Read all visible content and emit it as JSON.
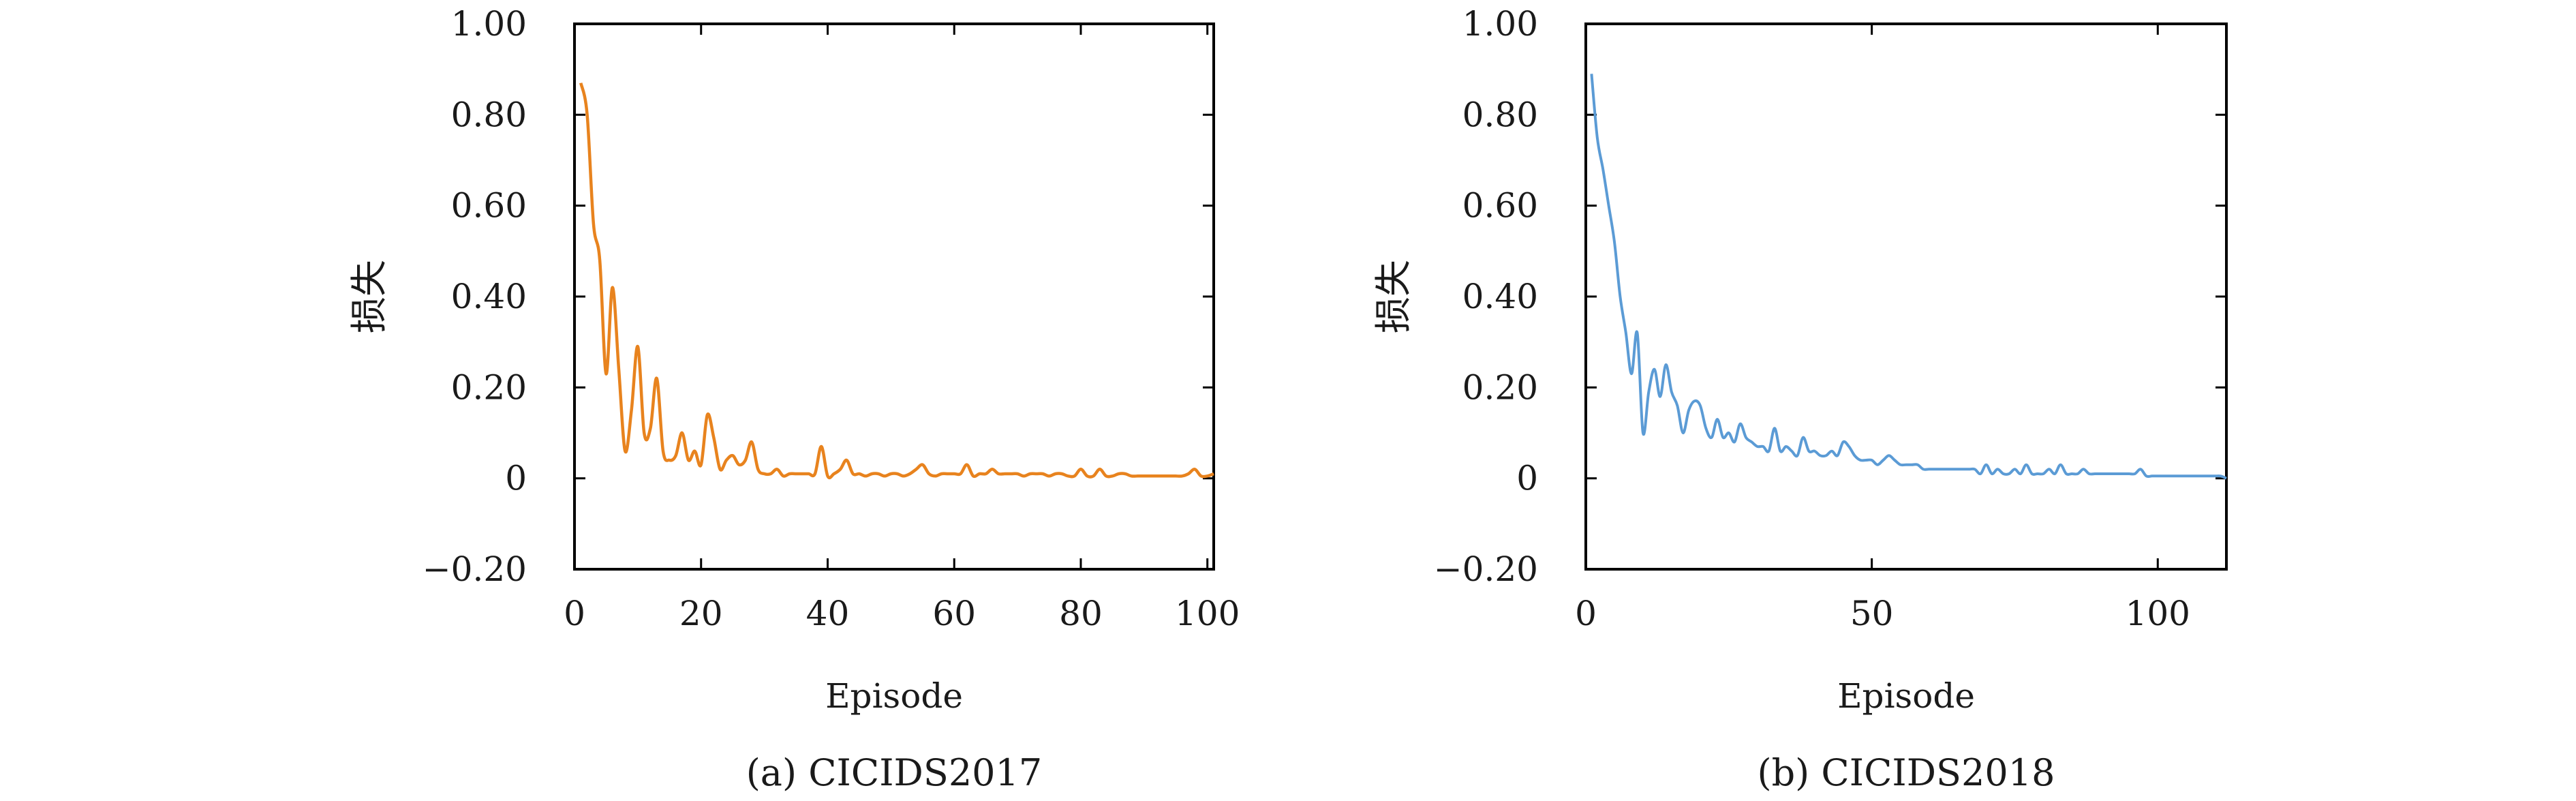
{
  "chart_data": [
    {
      "type": "line",
      "caption": "(a) CICIDS2017",
      "xlabel": "Episode",
      "ylabel": "损失",
      "xlim": [
        0,
        101
      ],
      "ylim": [
        -0.2,
        1.0
      ],
      "xticks": [
        0,
        20,
        40,
        60,
        80,
        100
      ],
      "xtick_labels": [
        "0",
        "20",
        "40",
        "60",
        "80",
        "100"
      ],
      "yticks": [
        -0.2,
        0,
        0.2,
        0.4,
        0.6,
        0.8,
        1.0
      ],
      "ytick_labels": [
        "−0.20",
        "0",
        "0.20",
        "0.40",
        "0.60",
        "0.80",
        "1.00"
      ],
      "grid": false,
      "color": "#E8831E",
      "series": [
        {
          "x": [
            1,
            2,
            3,
            4,
            5,
            6,
            7,
            8,
            9,
            10,
            11,
            12,
            13,
            14,
            15,
            16,
            17,
            18,
            19,
            20,
            21,
            22,
            23,
            24,
            25,
            26,
            27,
            28,
            29,
            30,
            31,
            32,
            33,
            34,
            35,
            36,
            37,
            38,
            39,
            40,
            41,
            42,
            43,
            44,
            45,
            46,
            47,
            48,
            49,
            50,
            51,
            52,
            53,
            54,
            55,
            56,
            57,
            58,
            59,
            60,
            61,
            62,
            63,
            64,
            65,
            66,
            67,
            68,
            69,
            70,
            71,
            72,
            73,
            74,
            75,
            76,
            77,
            78,
            79,
            80,
            81,
            82,
            83,
            84,
            85,
            86,
            87,
            88,
            89,
            90,
            91,
            92,
            93,
            94,
            95,
            96,
            97,
            98,
            99,
            100,
            101
          ],
          "values": [
            0.87,
            0.8,
            0.56,
            0.48,
            0.23,
            0.42,
            0.24,
            0.06,
            0.15,
            0.29,
            0.1,
            0.11,
            0.22,
            0.06,
            0.04,
            0.05,
            0.1,
            0.04,
            0.06,
            0.03,
            0.14,
            0.09,
            0.02,
            0.04,
            0.05,
            0.03,
            0.04,
            0.08,
            0.02,
            0.01,
            0.01,
            0.02,
            0.005,
            0.01,
            0.01,
            0.01,
            0.01,
            0.01,
            0.07,
            0.005,
            0.01,
            0.02,
            0.04,
            0.01,
            0.01,
            0.005,
            0.01,
            0.01,
            0.005,
            0.01,
            0.01,
            0.005,
            0.01,
            0.02,
            0.03,
            0.01,
            0.005,
            0.01,
            0.01,
            0.01,
            0.01,
            0.03,
            0.005,
            0.01,
            0.01,
            0.02,
            0.01,
            0.01,
            0.01,
            0.01,
            0.005,
            0.01,
            0.01,
            0.01,
            0.005,
            0.01,
            0.01,
            0.005,
            0.005,
            0.02,
            0.005,
            0.005,
            0.02,
            0.005,
            0.005,
            0.01,
            0.01,
            0.005,
            0.005,
            0.005,
            0.005,
            0.005,
            0.005,
            0.005,
            0.005,
            0.005,
            0.01,
            0.02,
            0.005,
            0.005,
            0.01
          ]
        }
      ]
    },
    {
      "type": "line",
      "caption": "(b) CICIDS2018",
      "xlabel": "Episode",
      "ylabel": "损失",
      "xlim": [
        0,
        112
      ],
      "ylim": [
        -0.2,
        1.0
      ],
      "xticks": [
        0,
        50,
        100
      ],
      "xtick_labels": [
        "0",
        "50",
        "100"
      ],
      "yticks": [
        -0.2,
        0,
        0.2,
        0.4,
        0.6,
        0.8,
        1.0
      ],
      "ytick_labels": [
        "−0.20",
        "0",
        "0.20",
        "0.40",
        "0.60",
        "0.80",
        "1.00"
      ],
      "grid": false,
      "color": "#5B9BD5",
      "series": [
        {
          "x": [
            1,
            2,
            3,
            4,
            5,
            6,
            7,
            8,
            9,
            10,
            11,
            12,
            13,
            14,
            15,
            16,
            17,
            18,
            19,
            20,
            21,
            22,
            23,
            24,
            25,
            26,
            27,
            28,
            29,
            30,
            31,
            32,
            33,
            34,
            35,
            36,
            37,
            38,
            39,
            40,
            41,
            42,
            43,
            44,
            45,
            46,
            47,
            48,
            49,
            50,
            51,
            52,
            53,
            54,
            55,
            56,
            57,
            58,
            59,
            60,
            61,
            62,
            63,
            64,
            65,
            66,
            67,
            68,
            69,
            70,
            71,
            72,
            73,
            74,
            75,
            76,
            77,
            78,
            79,
            80,
            81,
            82,
            83,
            84,
            85,
            86,
            87,
            88,
            89,
            90,
            91,
            92,
            93,
            94,
            95,
            96,
            97,
            98,
            99,
            100,
            101,
            102,
            103,
            104,
            105,
            106,
            107,
            108,
            109,
            110,
            111,
            112
          ],
          "values": [
            0.89,
            0.75,
            0.68,
            0.6,
            0.52,
            0.4,
            0.32,
            0.23,
            0.32,
            0.1,
            0.19,
            0.24,
            0.18,
            0.25,
            0.19,
            0.16,
            0.1,
            0.15,
            0.17,
            0.16,
            0.11,
            0.09,
            0.13,
            0.09,
            0.1,
            0.08,
            0.12,
            0.09,
            0.08,
            0.07,
            0.07,
            0.06,
            0.11,
            0.06,
            0.07,
            0.06,
            0.05,
            0.09,
            0.06,
            0.06,
            0.05,
            0.05,
            0.06,
            0.05,
            0.08,
            0.07,
            0.05,
            0.04,
            0.04,
            0.04,
            0.03,
            0.04,
            0.05,
            0.04,
            0.03,
            0.03,
            0.03,
            0.03,
            0.02,
            0.02,
            0.02,
            0.02,
            0.02,
            0.02,
            0.02,
            0.02,
            0.02,
            0.02,
            0.01,
            0.03,
            0.01,
            0.02,
            0.01,
            0.01,
            0.02,
            0.01,
            0.03,
            0.01,
            0.01,
            0.01,
            0.02,
            0.01,
            0.03,
            0.01,
            0.01,
            0.01,
            0.02,
            0.01,
            0.01,
            0.01,
            0.01,
            0.01,
            0.01,
            0.01,
            0.01,
            0.01,
            0.02,
            0.005,
            0.005,
            0.005,
            0.005,
            0.005,
            0.005,
            0.005,
            0.005,
            0.005,
            0.005,
            0.005,
            0.005,
            0.005,
            0.005,
            0.0
          ]
        }
      ]
    }
  ]
}
